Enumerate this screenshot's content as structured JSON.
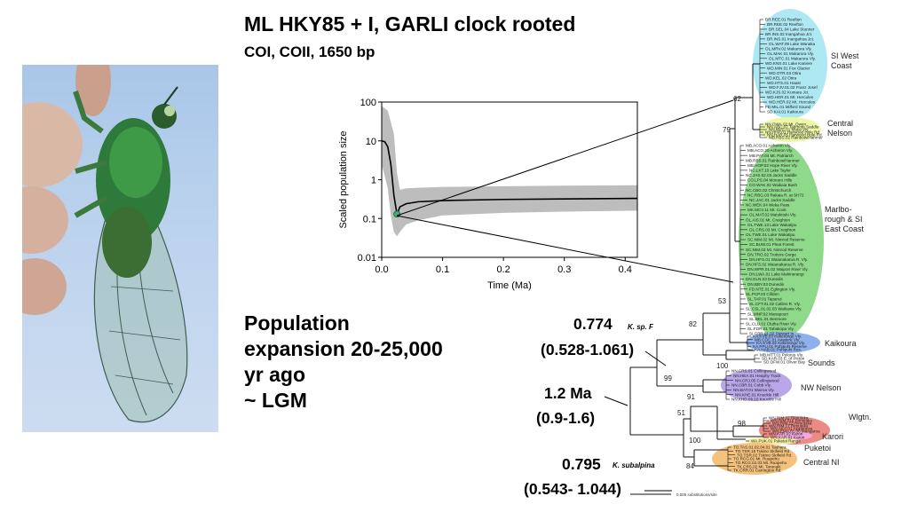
{
  "title": "ML HKY85 + I, GARLI clock rooted",
  "subtitle": "COI, COII, 1650 bp",
  "population_text": [
    "Population",
    "expansion 20-25,000",
    "yr ago",
    "~ LGM"
  ],
  "estimates": {
    "k_sp_f": {
      "value": "0.774",
      "ci": "(0.528-1.061)",
      "label": "K. sp. F"
    },
    "root": {
      "value": "1.2 Ma",
      "ci": "(0.9-1.6)"
    },
    "k_subalpina": {
      "value": "0.795",
      "ci": "(0.543- 1.044)",
      "label": "K. subalpina"
    }
  },
  "clades": [
    {
      "name": "SI West Coast",
      "lines": [
        "SI West",
        "Coast"
      ],
      "color": "#aee9f3"
    },
    {
      "name": "Central Nelson",
      "lines": [
        "Central",
        "Nelson"
      ],
      "color": "#eef7a8"
    },
    {
      "name": "Marlborough & SI East Coast",
      "lines": [
        "Marlbo-",
        "rough & SI",
        "East Coast"
      ],
      "color": "#8fd98a"
    },
    {
      "name": "Kaikoura",
      "lines": [
        "Kaikoura"
      ],
      "color": "#8fb0ea"
    },
    {
      "name": "Sounds",
      "lines": [
        "Sounds"
      ],
      "color": "#ffffff"
    },
    {
      "name": "NW Nelson",
      "lines": [
        "NW Nelson"
      ],
      "color": "#b9a7ea"
    },
    {
      "name": "Wlgtn.",
      "lines": [
        "Wlgtn."
      ],
      "color": "#ec8a84"
    },
    {
      "name": "Karori",
      "lines": [
        "Karori"
      ],
      "color": "#f1a8dc"
    },
    {
      "name": "Puketoi",
      "lines": [
        "Puketoi"
      ],
      "color": "#f5f0a0"
    },
    {
      "name": "Central NI",
      "lines": [
        "Central NI"
      ],
      "color": "#f5c27e"
    }
  ],
  "support_values": [
    "62",
    "79",
    "53",
    "82",
    "99",
    "100",
    "91",
    "98",
    "51",
    "100",
    "84"
  ],
  "tips": {
    "west_coast": [
      "BR.REE.01 Reefton",
      "BR.REE.02 Reefton",
      "BR.SEL.04 Lake Stunner",
      "BR.INS.02 Inangahua Jct.",
      "BR.INS.01 Inangahua Jct.",
      "OL.WAT.09 Lake Wanaka",
      "OL.MRV.02 Makarora Vly.",
      "OL.MAK.01 Makarora Vly.",
      "OL.MTC.01 Makarora Vly.",
      "WD.KNS.01 Lake Kaniere",
      "WD.MIN.01 Fox Glacier",
      "WD.OTR.03 Otira",
      "WD.KEL.02 Otira",
      "WD.HTS.01 Haast",
      "WD.FJV.01.02 Franz Josef",
      "WD.KJS.02 Kumara Jct.",
      "WD.HER.01 Mt. Hercules",
      "WD.HER.02 Mt. Hercules",
      "FD.MIL.01 Milford Sound",
      "SD.KAI.01 Kaikoura"
    ],
    "central_nelson": [
      "NN.OWA.02 Mt. Owen",
      "NN.ABC.07 Tadmore Saddle",
      "NN.MVS.01 Matai Vly.",
      "NN.HHP.01 Harwood Hole Rd.",
      "NN.HAR.05 Harwood Hole Rd.",
      "MB.RBS.02 Rainbow/Hanmer"
    ],
    "marlborough": [
      "MB.ACO.01 Acheron Vly.",
      "MB.ACO.20 Acheron Vly.",
      "MB.PAT.04 Mt. Patriarch",
      "MB.RBS.01 Rainbow/Hanmer",
      "MB.HOP.02 Hope River Vly.",
      "NC.LKT.10 Lake Taylor",
      "NC.JAS.02.03 Jacks Saddle",
      "CO.LPS.04 Monaro Hills",
      "CO.WAK.02 Waikaia Bush",
      "NC.CBG.02 Christchurch",
      "NC.RBG.03 Rakaia R. at SH72",
      "NC.JAC.01 Jacks Saddle",
      "NC.WEK.04 Weka Pass",
      "MK.MCV.11 Mt. Cook",
      "OL.MAT.02 Matukituki Vly.",
      "OL.AIS.01 Mt. Creighton",
      "OL.TWE.13 Lake Wakatipu",
      "OL.CRS.03 Mt. Creighton",
      "OL.TWE.01 Lake Wakatipu",
      "SC.NIM.02 Mt. Nimrod Reserve",
      "SC.BUW.01 Pleat Forest",
      "SC.NIM.03 Mt. Nimrod Reserve",
      "DN.TRO.02 Trotters Gorge",
      "DN.HFS.01 Waianakarua R. Vly.",
      "DN.HFS.02 Waianakarua R. Vly.",
      "DN.WPR.01.02 Waipori River Vly.",
      "DN.LWA.01 Lake Mahinerangi",
      "DN.GLN.03 Dunedin",
      "DN.BBY.03 Dunedin",
      "FD.NTE.01 Eglington Vly.",
      "SL.PCP.03 Clifden",
      "SL.TAP.01 Tapanui",
      "SL.CFT.01.02 Catlins R. Vly.",
      "SL.CSL.01.02.03 Waikawa Vly.",
      "SL.MNP.02 Manapouri",
      "SL.BEL.01 Benmore",
      "SL.CLU.01 Clutha River Vly.",
      "SL.FOR.01 Tahakopa Vly.",
      "SI.GBR.01.02 Stewart Is."
    ],
    "kaikoura": [
      "KA.KVB.03 Kekerengu Vly.",
      "MB.COC.01 Awatere Vly.",
      "KA.KVB.02 Kekerengu Vly.",
      "KA.PPU.01 Puhipuhi Reserve",
      "KA.HAB.01 Puhipuhi Res."
    ],
    "sounds": [
      "MB.MTT.01 Pelorus Vly.",
      "SD.KAR.03 E. of Picton",
      "SD.OFW.01 Oliver Bay"
    ],
    "nw_nelson": [
      "NN.CRS.01 Collingwood",
      "NN.HEA.01 Heaphy Track",
      "NN.CRJ.05 Collingwood",
      "NN.CBR.01 Cobb Vly.",
      "NN.BAT.01 Wairoa Vly.",
      "NN.KHE.01 Knuckle Hill",
      "NN.KHD.09.10 Knuckle Hill"
    ],
    "wellington": [
      "WN.RIM.02 Rimutaka",
      "WN.RIM.016 Rimutaka",
      "WN.RIM.13 Rimutaka",
      "WN.RIM.17 Rimutaka",
      "WN.AKA.01 Akatarawa",
      "WN.EMA.01.06 Mangaroa"
    ],
    "karori": [
      "WN.KAR.02 Karori",
      "WN.KAR.01 Karori"
    ],
    "puketoi": [
      "WA.PUK.01 Puketoi Range"
    ],
    "central_ni": [
      "TO.TAS.01.02.04.01 Tauhara",
      "TO.TSR.15 Tukino Skifield Rd.",
      "TO.TSR.02 Tukino Skifield Rd.",
      "TO.RCG.01 Mt. Ruapehu",
      "TO.RCG.02.03 Mt. Ruapehu",
      "TK.CRS.02 Mt. Taranaki",
      "TK.CRR.01 Carrington Rd."
    ]
  },
  "scale_bar_label": "0.005 substitutions/site",
  "chart_data": {
    "type": "line",
    "xlabel": "Time (Ma)",
    "ylabel": "Scaled population size",
    "xlim": [
      0,
      0.42
    ],
    "ylim": [
      0.01,
      100
    ],
    "y_scale": "log",
    "x_ticks": [
      "0.0",
      "0.1",
      "0.2",
      "0.3",
      "0.4"
    ],
    "y_ticks": [
      "0.01",
      "0.1",
      "1",
      "10",
      "100"
    ],
    "series": [
      {
        "role": "median",
        "x": [
          0.0,
          0.005,
          0.01,
          0.015,
          0.02,
          0.025,
          0.03,
          0.04,
          0.06,
          0.1,
          0.2,
          0.3,
          0.42
        ],
        "y": [
          10,
          9.5,
          7,
          2.5,
          0.4,
          0.13,
          0.2,
          0.24,
          0.27,
          0.29,
          0.31,
          0.32,
          0.33
        ]
      },
      {
        "role": "hpd_upper",
        "x": [
          0.0,
          0.01,
          0.02,
          0.025,
          0.03,
          0.04,
          0.06,
          0.1,
          0.2,
          0.3,
          0.42
        ],
        "y": [
          80,
          60,
          15,
          1.5,
          0.55,
          0.6,
          0.62,
          0.65,
          0.68,
          0.7,
          0.72
        ]
      },
      {
        "role": "hpd_lower",
        "x": [
          0.0,
          0.01,
          0.015,
          0.02,
          0.025,
          0.03,
          0.04,
          0.06,
          0.1,
          0.2,
          0.3,
          0.42
        ],
        "y": [
          2.5,
          0.6,
          0.12,
          0.045,
          0.035,
          0.045,
          0.07,
          0.09,
          0.12,
          0.14,
          0.15,
          0.16
        ]
      }
    ],
    "marker": {
      "x": 0.025,
      "y": 0.13,
      "color": "#3bb07a"
    },
    "band_color": "#bdbdbd"
  }
}
